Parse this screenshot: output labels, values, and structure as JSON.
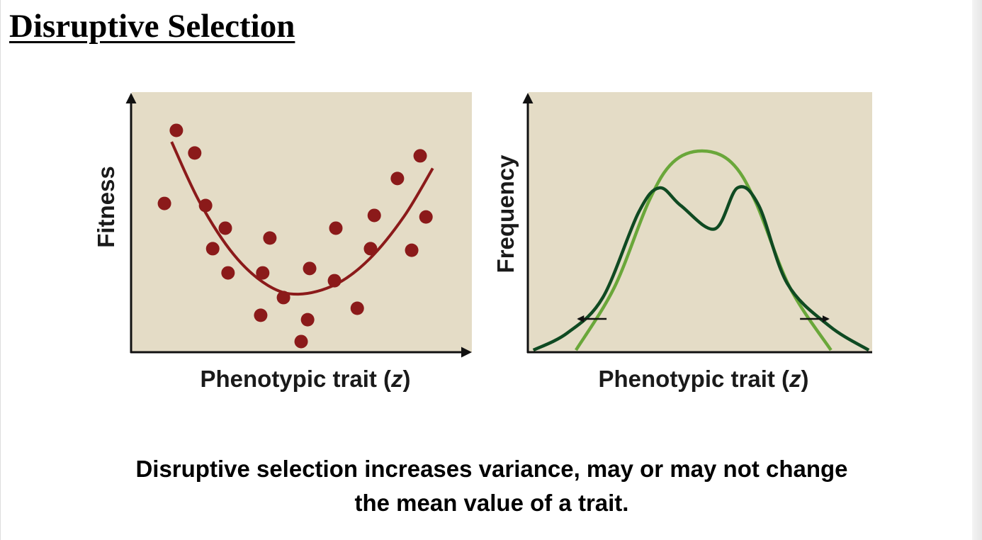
{
  "title": "Disruptive Selection",
  "caption": {
    "line1": "Disruptive selection increases variance, may or may not change",
    "line2": "the mean value of a trait."
  },
  "colors": {
    "plot_background": "#e4dcc6",
    "points": "#8b1a1a",
    "fit_curve": "#8b1a1a",
    "before_distribution": "#6aa73a",
    "after_distribution": "#0f4a22",
    "axes": "#111111"
  },
  "chart_data": [
    {
      "type": "scatter",
      "ylabel": "Fitness",
      "xlabel": {
        "prefix": "Phenotypic trait (",
        "variable": "z",
        "suffix": ")"
      },
      "xlim": [
        0,
        10
      ],
      "ylim": [
        0,
        10
      ],
      "ticks": "none",
      "grid": false,
      "points": [
        [
          0.96,
          5.72
        ],
        [
          1.31,
          8.53
        ],
        [
          1.85,
          7.66
        ],
        [
          2.17,
          5.64
        ],
        [
          2.75,
          4.77
        ],
        [
          2.38,
          3.98
        ],
        [
          2.83,
          3.05
        ],
        [
          3.85,
          3.05
        ],
        [
          4.06,
          4.39
        ],
        [
          3.79,
          1.42
        ],
        [
          4.46,
          2.1
        ],
        [
          4.98,
          0.41
        ],
        [
          5.17,
          1.25
        ],
        [
          5.23,
          3.22
        ],
        [
          5.96,
          2.75
        ],
        [
          6.0,
          4.77
        ],
        [
          6.63,
          1.69
        ],
        [
          7.13,
          5.26
        ],
        [
          7.02,
          3.98
        ],
        [
          7.81,
          6.68
        ],
        [
          8.48,
          7.55
        ],
        [
          8.23,
          3.92
        ],
        [
          8.65,
          5.2
        ]
      ],
      "fit_curve": {
        "shape": "U-shaped (quadratic)",
        "x": [
          1.17,
          2,
          3,
          4,
          4.9,
          6,
          7,
          8,
          8.85
        ],
        "y": [
          8.09,
          5.76,
          3.75,
          2.57,
          2.23,
          2.61,
          3.6,
          5.21,
          7.07
        ]
      }
    },
    {
      "type": "line",
      "ylabel": "Frequency",
      "xlabel": {
        "prefix": "Phenotypic trait (",
        "variable": "z",
        "suffix": ")"
      },
      "xlim": [
        0,
        10
      ],
      "ylim": [
        0,
        10
      ],
      "ticks": "none",
      "grid": false,
      "series": [
        {
          "role": "before selection (unimodal, light green)",
          "x": [
            1.38,
            2.5,
            3.5,
            4.2,
            5.05,
            5.9,
            6.6,
            7.6,
            8.8
          ],
          "y": [
            0.08,
            2.5,
            5.8,
            7.3,
            7.74,
            7.3,
            5.8,
            2.5,
            0.08
          ]
        },
        {
          "role": "after selection (bimodal, dark green)",
          "x": [
            0.14,
            1.13,
            2.16,
            3.2,
            3.81,
            4.43,
            5.42,
            6.08,
            6.7,
            7.53,
            8.76,
            9.9
          ],
          "y": [
            0.08,
            0.74,
            2.1,
            5.37,
            6.32,
            5.64,
            4.74,
            6.32,
            5.64,
            2.64,
            1.0,
            0.08
          ]
        }
      ],
      "annotations": [
        {
          "type": "arrow",
          "direction": "left",
          "x_from": 2.27,
          "x_to": 1.45,
          "y": 1.28
        },
        {
          "type": "arrow",
          "direction": "right",
          "x_from": 7.9,
          "x_to": 8.72,
          "y": 1.28
        }
      ]
    }
  ]
}
